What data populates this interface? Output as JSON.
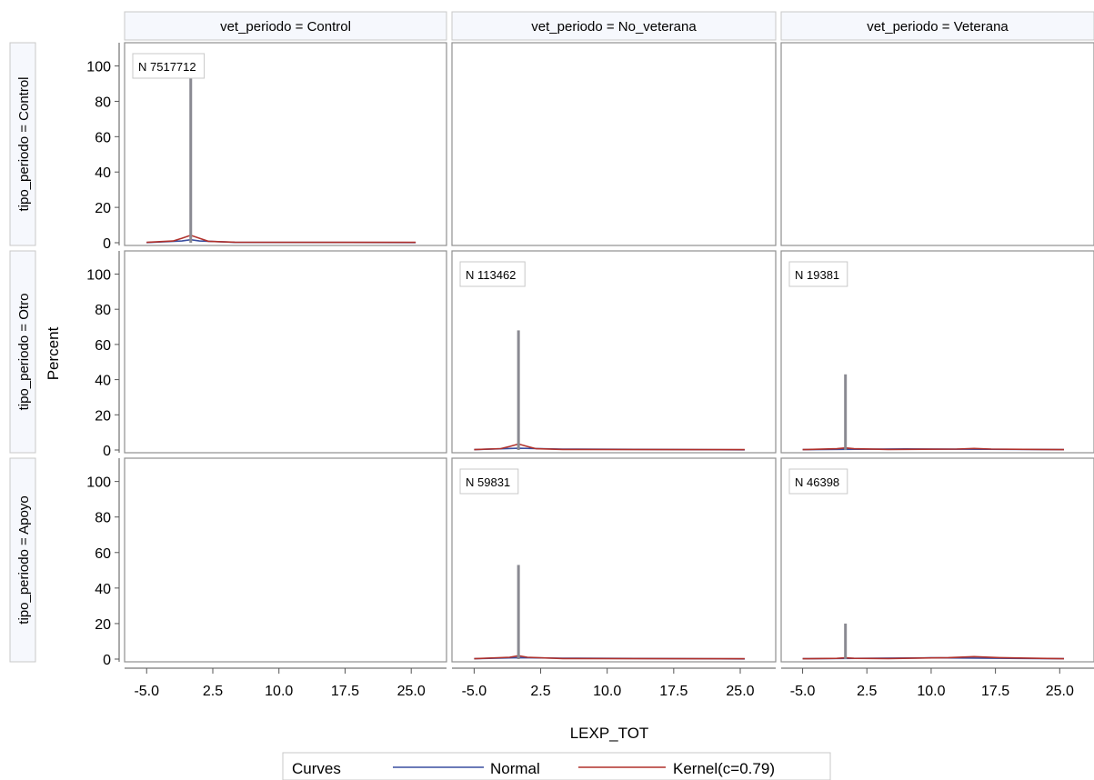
{
  "chart_data": {
    "type": "histogram-panel",
    "ylabel": "Percent",
    "xlabel": "LEXP_TOT",
    "yticks": [
      0,
      20,
      40,
      60,
      80,
      100
    ],
    "xticks": [
      "-5.0",
      "2.5",
      "10.0",
      "17.5",
      "25.0"
    ],
    "xlim": [
      -7.5,
      29.0
    ],
    "ylim": [
      0,
      108
    ],
    "columns": [
      "vet_periodo = Control",
      "vet_periodo = No_veterana",
      "vet_periodo = Veterana"
    ],
    "rows": [
      "tipo_periodo = Control",
      "tipo_periodo = Otro",
      "tipo_periodo = Apoyo"
    ],
    "panels": [
      {
        "row": 0,
        "col": 0,
        "n_label": "N 7517712",
        "spikes": [
          {
            "x": 0.0,
            "y": 100
          }
        ],
        "kernel": [
          {
            "x": -5.0,
            "y": 0.2
          },
          {
            "x": -2.0,
            "y": 1.0
          },
          {
            "x": -1.0,
            "y": 2.5
          },
          {
            "x": 0.0,
            "y": 4.2
          },
          {
            "x": 1.0,
            "y": 2.5
          },
          {
            "x": 2.0,
            "y": 0.8
          },
          {
            "x": 5.0,
            "y": 0.3
          },
          {
            "x": 25.5,
            "y": 0.2
          }
        ],
        "normal": [
          {
            "x": -5.0,
            "y": 0.1
          },
          {
            "x": -1.0,
            "y": 1.0
          },
          {
            "x": 0.0,
            "y": 1.7
          },
          {
            "x": 1.0,
            "y": 1.0
          },
          {
            "x": 5.0,
            "y": 0.2
          },
          {
            "x": 25.5,
            "y": 0.1
          }
        ]
      },
      {
        "row": 0,
        "col": 1,
        "n_label": "",
        "spikes": [],
        "kernel": [],
        "normal": []
      },
      {
        "row": 0,
        "col": 2,
        "n_label": "",
        "spikes": [],
        "kernel": [],
        "normal": []
      },
      {
        "row": 1,
        "col": 0,
        "n_label": "",
        "spikes": [],
        "kernel": [],
        "normal": []
      },
      {
        "row": 1,
        "col": 1,
        "n_label": "N 113462",
        "spikes": [
          {
            "x": 0.0,
            "y": 68
          }
        ],
        "kernel": [
          {
            "x": -5.0,
            "y": 0.2
          },
          {
            "x": -2.0,
            "y": 0.8
          },
          {
            "x": -1.0,
            "y": 2.0
          },
          {
            "x": 0.0,
            "y": 3.4
          },
          {
            "x": 1.0,
            "y": 2.0
          },
          {
            "x": 2.0,
            "y": 0.7
          },
          {
            "x": 5.0,
            "y": 0.3
          },
          {
            "x": 25.5,
            "y": 0.2
          }
        ],
        "normal": [
          {
            "x": -5.0,
            "y": 0.2
          },
          {
            "x": 0.0,
            "y": 1.0
          },
          {
            "x": 5.0,
            "y": 0.5
          },
          {
            "x": 25.5,
            "y": 0.1
          }
        ]
      },
      {
        "row": 1,
        "col": 2,
        "n_label": "N 19381",
        "spikes": [
          {
            "x": 0.0,
            "y": 43
          }
        ],
        "kernel": [
          {
            "x": -5.0,
            "y": 0.2
          },
          {
            "x": -1.0,
            "y": 0.7
          },
          {
            "x": 0.0,
            "y": 1.2
          },
          {
            "x": 1.0,
            "y": 0.7
          },
          {
            "x": 5.0,
            "y": 0.3
          },
          {
            "x": 13.0,
            "y": 0.5
          },
          {
            "x": 15.0,
            "y": 0.9
          },
          {
            "x": 17.0,
            "y": 0.5
          },
          {
            "x": 25.5,
            "y": 0.2
          }
        ],
        "normal": [
          {
            "x": -5.0,
            "y": 0.2
          },
          {
            "x": 7.0,
            "y": 0.6
          },
          {
            "x": 25.5,
            "y": 0.2
          }
        ]
      },
      {
        "row": 2,
        "col": 0,
        "n_label": "",
        "spikes": [],
        "kernel": [],
        "normal": []
      },
      {
        "row": 2,
        "col": 1,
        "n_label": "N 59831",
        "spikes": [
          {
            "x": 0.0,
            "y": 53
          }
        ],
        "kernel": [
          {
            "x": -5.0,
            "y": 0.2
          },
          {
            "x": -1.0,
            "y": 1.0
          },
          {
            "x": 0.0,
            "y": 1.9
          },
          {
            "x": 1.0,
            "y": 1.0
          },
          {
            "x": 5.0,
            "y": 0.3
          },
          {
            "x": 25.5,
            "y": 0.2
          }
        ],
        "normal": [
          {
            "x": -5.0,
            "y": 0.2
          },
          {
            "x": 0.0,
            "y": 0.8
          },
          {
            "x": 5.0,
            "y": 0.5
          },
          {
            "x": 25.5,
            "y": 0.1
          }
        ]
      },
      {
        "row": 2,
        "col": 2,
        "n_label": "N 46398",
        "spikes": [
          {
            "x": 0.0,
            "y": 20
          }
        ],
        "kernel": [
          {
            "x": -5.0,
            "y": 0.2
          },
          {
            "x": -1.0,
            "y": 0.4
          },
          {
            "x": 0.0,
            "y": 0.7
          },
          {
            "x": 1.0,
            "y": 0.4
          },
          {
            "x": 5.0,
            "y": 0.3
          },
          {
            "x": 12.0,
            "y": 0.8
          },
          {
            "x": 15.0,
            "y": 1.4
          },
          {
            "x": 18.0,
            "y": 0.8
          },
          {
            "x": 25.5,
            "y": 0.2
          }
        ],
        "normal": [
          {
            "x": -5.0,
            "y": 0.2
          },
          {
            "x": 10.0,
            "y": 0.7
          },
          {
            "x": 25.5,
            "y": 0.2
          }
        ]
      }
    ],
    "legend": {
      "title": "Curves",
      "placement": "bottom",
      "items": [
        {
          "label": "Normal",
          "color": "#3a4fa0"
        },
        {
          "label": "Kernel(c=0.79)",
          "color": "#b0312c"
        }
      ]
    },
    "colors": {
      "spike": "#8a8a92",
      "normal": "#3a4fa0",
      "kernel": "#b0312c",
      "header_bg": "#f6f8fd",
      "frame": "#8f8f8f"
    }
  }
}
